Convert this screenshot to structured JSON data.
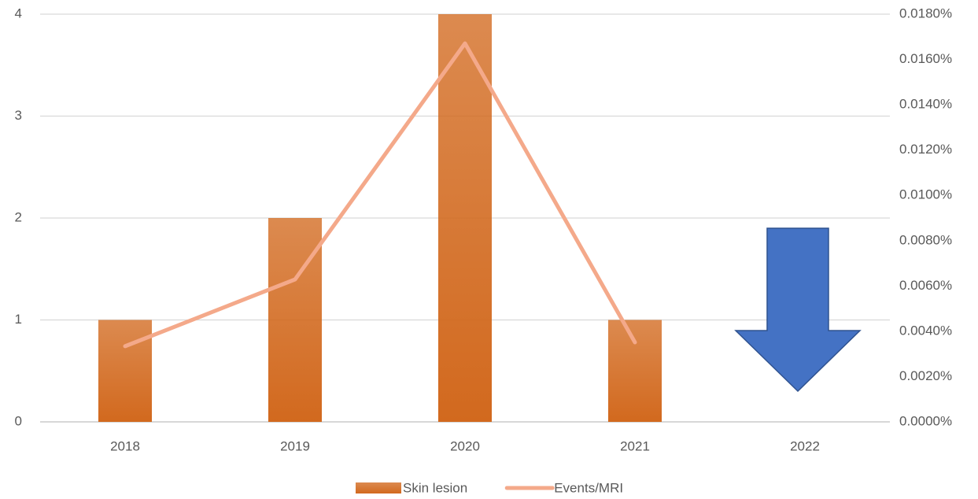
{
  "chart_data": {
    "type": "bar_line",
    "categories": [
      "2018",
      "2019",
      "2020",
      "2021",
      "2022"
    ],
    "series": [
      {
        "name": "Skin lesion",
        "type": "bar",
        "color": "#d2691e",
        "values": [
          1,
          2,
          4,
          1,
          null
        ]
      },
      {
        "name": "Events/MRI",
        "type": "line",
        "axis": "y2",
        "color": "#f4a98a",
        "values": [
          0.00334,
          0.00629,
          0.01671,
          0.00351,
          null
        ]
      }
    ],
    "ylim": [
      0,
      4
    ],
    "yticks": [
      0,
      1,
      2,
      3,
      4
    ],
    "y2lim": [
      0,
      0.018
    ],
    "y2ticks": [
      {
        "value": 0,
        "label": "0.0000%"
      },
      {
        "value": 0.002,
        "label": "0.0020%"
      },
      {
        "value": 0.004,
        "label": "0.0040%"
      },
      {
        "value": 0.006,
        "label": "0.0060%"
      },
      {
        "value": 0.008,
        "label": "0.0080%"
      },
      {
        "value": 0.01,
        "label": "0.0100%"
      },
      {
        "value": 0.012,
        "label": "0.0120%"
      },
      {
        "value": 0.014,
        "label": "0.0140%"
      },
      {
        "value": 0.016,
        "label": "0.0160%"
      },
      {
        "value": 0.018,
        "label": "0.0180%"
      }
    ],
    "grid": true,
    "legend": "bottom"
  }
}
